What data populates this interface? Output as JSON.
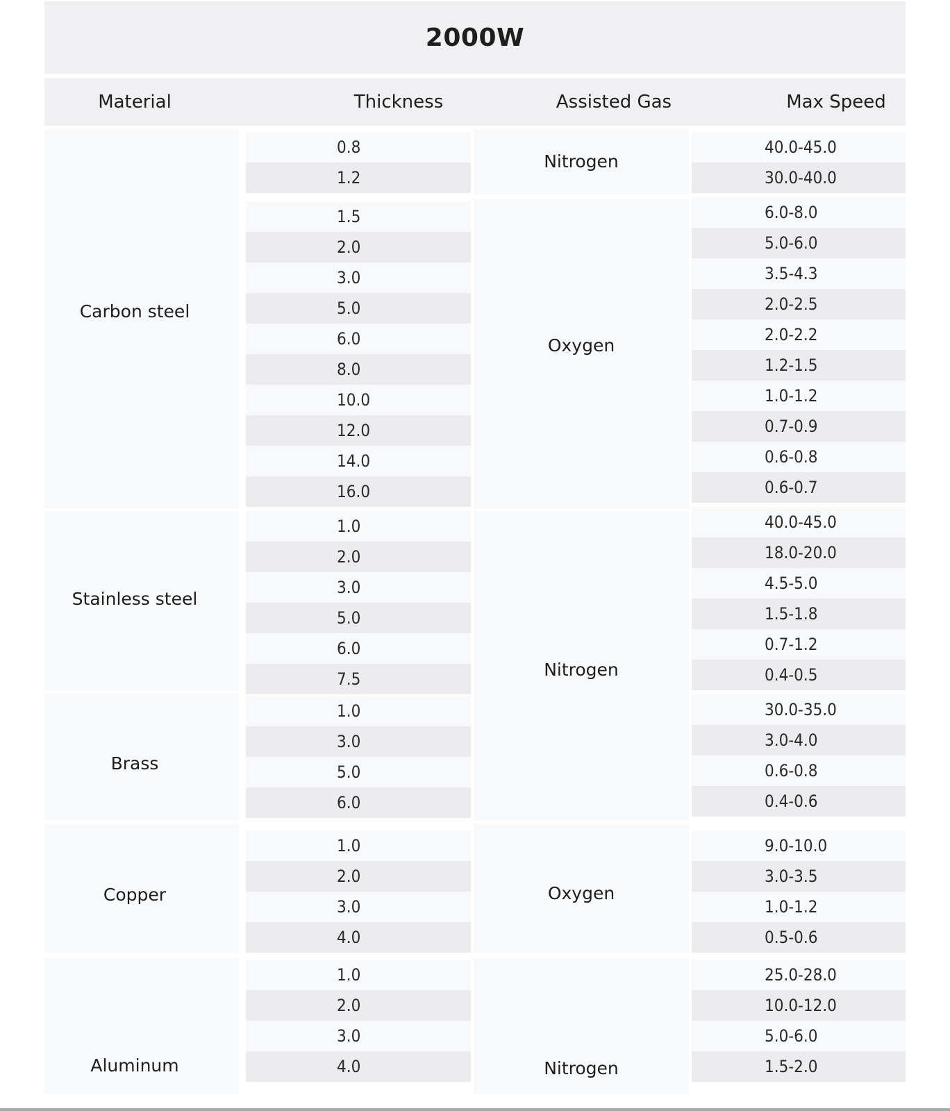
{
  "title": "2000W",
  "headers": {
    "material": "Material",
    "thickness": "Thickness",
    "gas": "Assisted Gas",
    "speed": "Max Speed"
  },
  "materials": [
    {
      "name": "Carbon steel"
    },
    {
      "name": "Stainless steel"
    },
    {
      "name": "Brass"
    },
    {
      "name": "Copper"
    },
    {
      "name": "Aluminum"
    }
  ],
  "gases": [
    {
      "name": "Nitrogen"
    },
    {
      "name": "Oxygen"
    },
    {
      "name": "Nitrogen"
    },
    {
      "name": "Oxygen"
    },
    {
      "name": "Nitrogen"
    }
  ],
  "rows": [
    {
      "thickness": "0.8",
      "speed": "40.0-45.0"
    },
    {
      "thickness": "1.2",
      "speed": "30.0-40.0"
    },
    {
      "thickness": "1.5",
      "speed": "6.0-8.0"
    },
    {
      "thickness": "2.0",
      "speed": "5.0-6.0"
    },
    {
      "thickness": "3.0",
      "speed": "3.5-4.3"
    },
    {
      "thickness": "5.0",
      "speed": "2.0-2.5"
    },
    {
      "thickness": "6.0",
      "speed": "2.0-2.2"
    },
    {
      "thickness": "8.0",
      "speed": "1.2-1.5"
    },
    {
      "thickness": "10.0",
      "speed": "1.0-1.2"
    },
    {
      "thickness": "12.0",
      "speed": "0.7-0.9"
    },
    {
      "thickness": "14.0",
      "speed": "0.6-0.8"
    },
    {
      "thickness": "16.0",
      "speed": "0.6-0.7"
    },
    {
      "thickness": "1.0",
      "speed": "40.0-45.0"
    },
    {
      "thickness": "2.0",
      "speed": "18.0-20.0"
    },
    {
      "thickness": "3.0",
      "speed": "4.5-5.0"
    },
    {
      "thickness": "5.0",
      "speed": "1.5-1.8"
    },
    {
      "thickness": "6.0",
      "speed": "0.7-1.2"
    },
    {
      "thickness": "7.5",
      "speed": "0.4-0.5"
    },
    {
      "thickness": "1.0",
      "speed": "30.0-35.0"
    },
    {
      "thickness": "3.0",
      "speed": "3.0-4.0"
    },
    {
      "thickness": "5.0",
      "speed": "0.6-0.8"
    },
    {
      "thickness": "6.0",
      "speed": "0.4-0.6"
    },
    {
      "thickness": "1.0",
      "speed": "9.0-10.0"
    },
    {
      "thickness": "2.0",
      "speed": "3.0-3.5"
    },
    {
      "thickness": "3.0",
      "speed": "1.0-1.2"
    },
    {
      "thickness": "4.0",
      "speed": "0.5-0.6"
    },
    {
      "thickness": "1.0",
      "speed": "25.0-28.0"
    },
    {
      "thickness": "2.0",
      "speed": "10.0-12.0"
    },
    {
      "thickness": "3.0",
      "speed": "5.0-6.0"
    },
    {
      "thickness": "4.0",
      "speed": "1.5-2.0"
    }
  ]
}
